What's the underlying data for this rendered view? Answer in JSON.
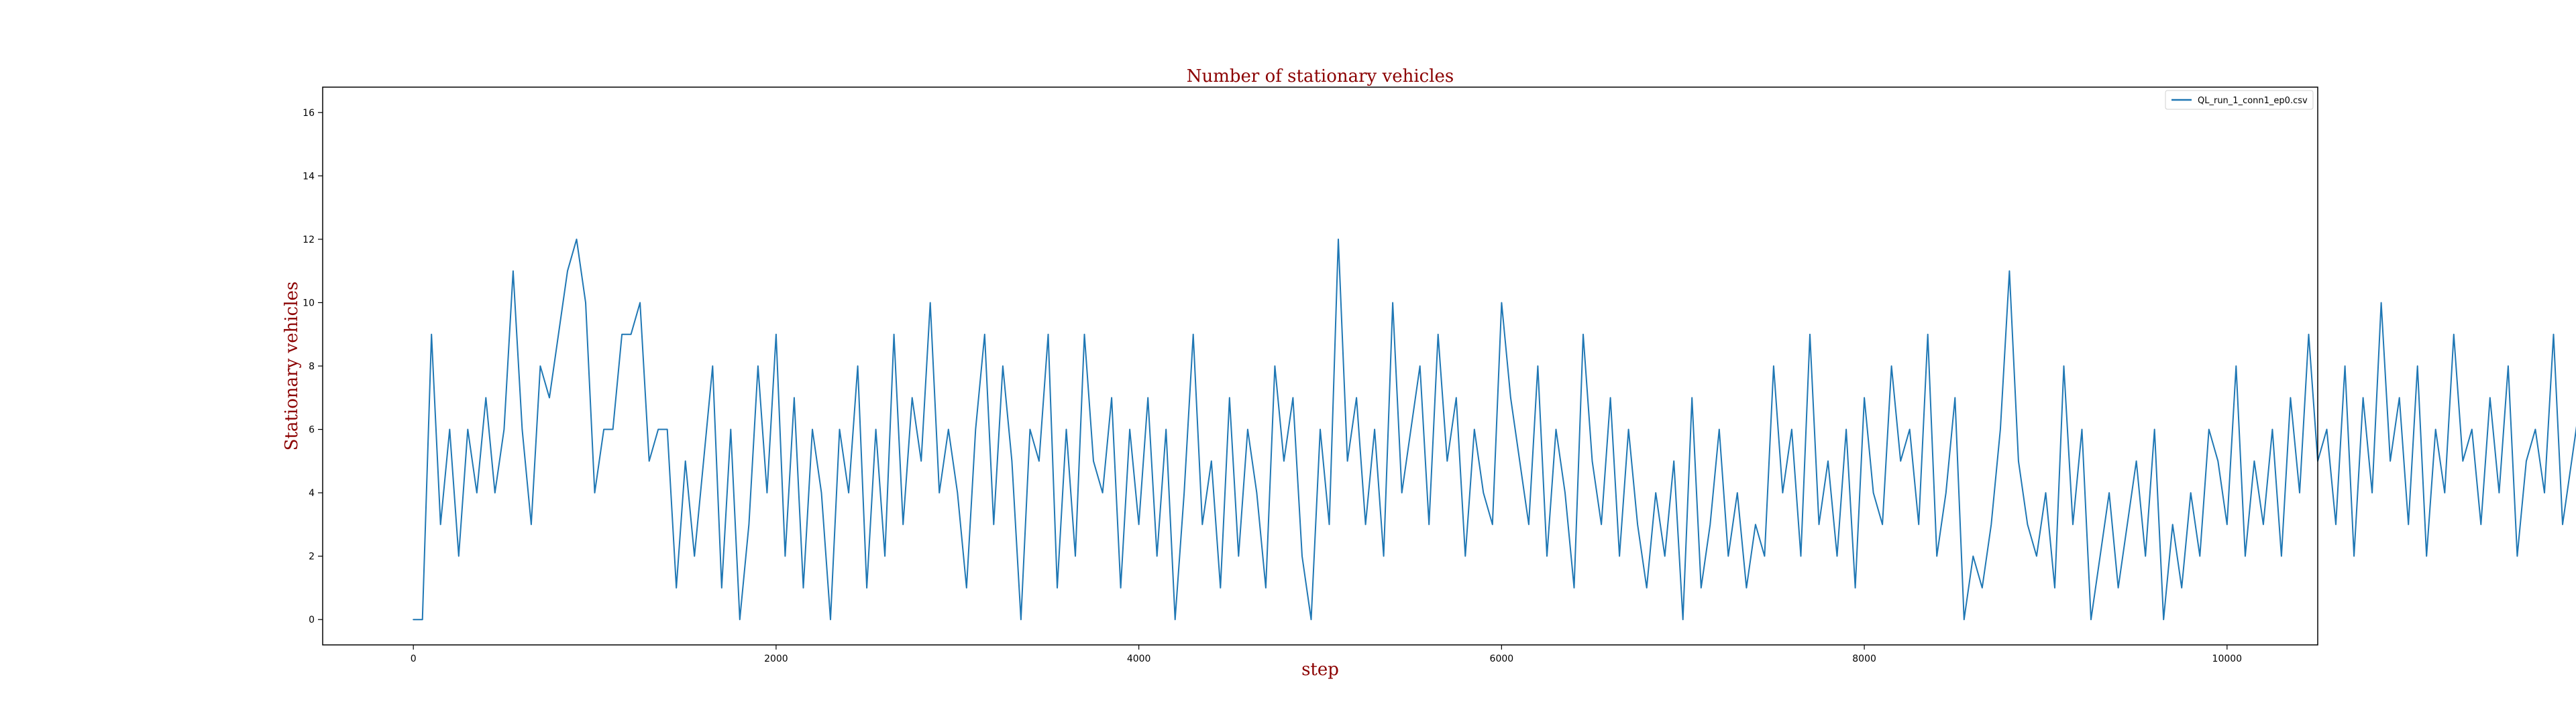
{
  "chart_data": {
    "type": "line",
    "title": "Number of stationary vehicles",
    "xlabel": "step",
    "ylabel": "Stationary vehicles",
    "xlim": [
      -500,
      10500
    ],
    "ylim": [
      -0.8,
      16.8
    ],
    "xticks": [
      0,
      2000,
      4000,
      6000,
      8000,
      10000
    ],
    "yticks": [
      0,
      2,
      4,
      6,
      8,
      10,
      12,
      14,
      16
    ],
    "grid": false,
    "legend_position": "upper-right",
    "series": [
      {
        "name": "QL_run_1_conn1_ep0.csv",
        "color": "#1f77b4",
        "x_start": 0,
        "x_step": 50,
        "values": [
          0,
          0,
          9,
          3,
          6,
          2,
          6,
          4,
          7,
          4,
          6,
          11,
          6,
          3,
          8,
          7,
          9,
          11,
          12,
          10,
          4,
          6,
          6,
          9,
          9,
          10,
          5,
          6,
          6,
          1,
          5,
          2,
          5,
          8,
          1,
          6,
          0,
          3,
          8,
          4,
          9,
          2,
          7,
          1,
          6,
          4,
          0,
          6,
          4,
          8,
          1,
          6,
          2,
          9,
          3,
          7,
          5,
          10,
          4,
          6,
          4,
          1,
          6,
          9,
          3,
          8,
          5,
          0,
          6,
          5,
          9,
          1,
          6,
          2,
          9,
          5,
          4,
          7,
          1,
          6,
          3,
          7,
          2,
          6,
          0,
          4,
          9,
          3,
          5,
          1,
          7,
          2,
          6,
          4,
          1,
          8,
          5,
          7,
          2,
          0,
          6,
          3,
          12,
          5,
          7,
          3,
          6,
          2,
          10,
          4,
          6,
          8,
          3,
          9,
          5,
          7,
          2,
          6,
          4,
          3,
          10,
          7,
          5,
          3,
          8,
          2,
          6,
          4,
          1,
          9,
          5,
          3,
          7,
          2,
          6,
          3,
          1,
          4,
          2,
          5,
          0,
          7,
          1,
          3,
          6,
          2,
          4,
          1,
          3,
          2,
          8,
          4,
          6,
          2,
          9,
          3,
          5,
          2,
          6,
          1,
          7,
          4,
          3,
          8,
          5,
          6,
          3,
          9,
          2,
          4,
          7,
          0,
          2,
          1,
          3,
          6,
          11,
          5,
          3,
          2,
          4,
          1,
          8,
          3,
          6,
          0,
          2,
          4,
          1,
          3,
          5,
          2,
          6,
          0,
          3,
          1,
          4,
          2,
          6,
          5,
          3,
          8,
          2,
          5,
          3,
          6,
          2,
          7,
          4,
          9,
          5,
          6,
          3,
          8,
          2,
          7,
          4,
          10,
          5,
          7,
          3,
          8,
          2,
          6,
          4,
          9,
          5,
          6,
          3,
          7,
          4,
          8,
          2,
          5,
          6,
          4,
          9,
          3,
          5,
          7,
          2,
          6,
          4,
          8,
          3,
          5,
          1,
          7,
          4,
          6,
          2,
          8,
          3,
          5,
          4,
          6,
          2,
          5,
          3,
          1,
          4,
          2,
          5,
          1,
          3,
          0,
          2,
          1,
          4,
          3,
          0,
          2,
          1,
          4,
          2,
          3,
          1,
          0,
          2,
          4,
          1,
          3,
          2,
          0,
          3,
          5,
          2,
          7,
          4,
          6,
          3,
          8,
          4,
          6,
          2,
          5,
          3,
          9,
          4,
          6,
          2,
          5,
          3,
          1,
          4,
          0,
          3,
          2,
          5,
          1,
          4,
          0,
          3,
          2,
          6,
          4,
          7,
          3,
          5,
          2,
          6,
          4,
          8,
          3,
          5,
          2,
          4,
          1,
          6,
          3,
          5,
          2,
          7,
          4,
          6,
          3,
          8,
          5,
          4,
          6,
          2,
          5,
          3,
          8,
          4,
          7,
          3,
          6,
          5,
          4,
          9,
          5,
          6,
          4,
          7,
          3,
          8,
          5,
          6,
          4,
          7,
          3,
          6,
          4,
          8,
          5,
          6,
          4,
          7,
          5,
          6,
          4,
          8,
          5,
          4,
          6,
          5,
          3,
          7,
          5,
          13,
          9,
          6,
          11,
          7,
          5,
          8,
          6,
          4,
          9,
          7,
          5,
          8,
          6,
          4,
          10,
          7,
          6,
          9,
          12,
          8,
          4,
          6,
          5,
          10,
          8,
          11,
          15,
          9,
          6,
          10,
          13,
          7,
          5,
          9,
          6,
          4,
          8,
          5,
          3,
          7,
          4,
          2,
          6,
          1,
          5,
          3,
          0,
          4,
          2,
          5,
          1,
          3,
          0,
          2,
          4,
          1,
          3,
          0,
          2,
          5,
          3,
          7,
          4,
          6,
          2,
          8,
          3,
          5,
          1,
          7,
          4,
          6,
          3,
          8,
          4,
          6,
          2,
          5,
          3,
          9,
          4,
          6,
          3,
          7,
          4,
          10,
          5,
          6,
          4,
          7,
          3,
          11,
          5,
          8,
          4,
          6,
          3,
          9,
          5,
          7,
          3,
          6,
          2,
          8,
          4,
          6,
          3,
          7,
          2,
          5,
          3,
          6,
          1,
          7,
          3,
          5,
          2,
          8,
          3,
          6,
          4,
          7,
          5,
          6,
          3,
          8,
          4,
          6,
          3,
          7,
          2,
          5,
          4,
          6,
          3,
          7,
          5,
          6,
          4,
          8,
          5,
          6,
          4,
          7,
          5
        ]
      }
    ]
  }
}
